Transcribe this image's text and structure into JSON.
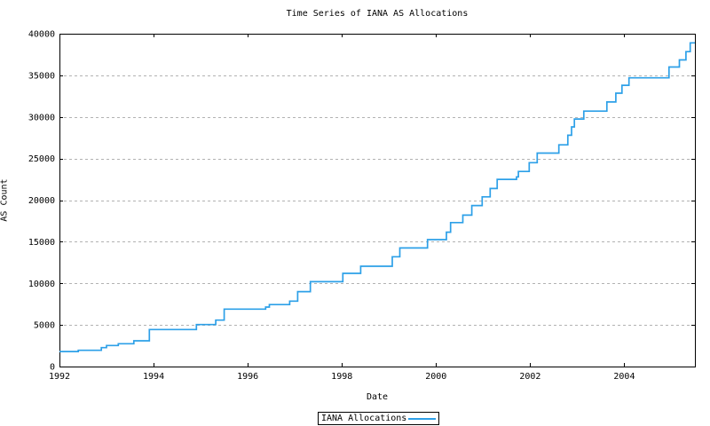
{
  "title": "Time Series of IANA AS Allocations",
  "colors": {
    "line": "#2da0e8",
    "grid": "#b2b2b2",
    "axis": "#000000",
    "background": "#ffffff",
    "text": "#000000"
  },
  "legend": {
    "label": "IANA Allocations"
  },
  "chart_data": {
    "type": "line",
    "style": "step-after",
    "title": "Time Series of IANA AS Allocations",
    "xlabel": "Date",
    "ylabel": "AS Count",
    "xlim": [
      1992,
      2005.5
    ],
    "ylim": [
      0,
      40000
    ],
    "x_ticks": [
      1992,
      1994,
      1996,
      1998,
      2000,
      2002,
      2004
    ],
    "y_ticks": [
      0,
      5000,
      10000,
      15000,
      20000,
      25000,
      30000,
      35000,
      40000
    ],
    "grid": "horizontal-dashed",
    "legend_position": "below-chart",
    "series": [
      {
        "name": "IANA Allocations",
        "color": "#2da0e8",
        "x": [
          1992.0,
          1992.4,
          1992.89,
          1993.0,
          1993.25,
          1993.58,
          1993.91,
          1994.91,
          1995.32,
          1995.5,
          1996.38,
          1996.46,
          1996.89,
          1997.06,
          1997.33,
          1998.02,
          1998.4,
          1999.07,
          1999.23,
          1999.82,
          2000.22,
          2000.31,
          2000.57,
          2000.76,
          2000.98,
          2001.15,
          2001.3,
          2001.71,
          2001.75,
          2001.98,
          2002.15,
          2002.61,
          2002.8,
          2002.88,
          2002.94,
          2003.14,
          2003.63,
          2003.82,
          2003.95,
          2004.1,
          2004.95,
          2005.17,
          2005.31,
          2005.4
        ],
        "y": [
          1800,
          1950,
          2270,
          2530,
          2740,
          3090,
          4450,
          5050,
          5580,
          6900,
          7150,
          7450,
          7860,
          9000,
          10200,
          11200,
          12050,
          13200,
          14250,
          15250,
          16150,
          17300,
          18200,
          19350,
          20400,
          21400,
          22500,
          22800,
          23450,
          24500,
          25650,
          26650,
          27800,
          28800,
          29750,
          30700,
          31800,
          32850,
          33800,
          34700,
          36000,
          36850,
          37850,
          38900
        ]
      }
    ]
  }
}
